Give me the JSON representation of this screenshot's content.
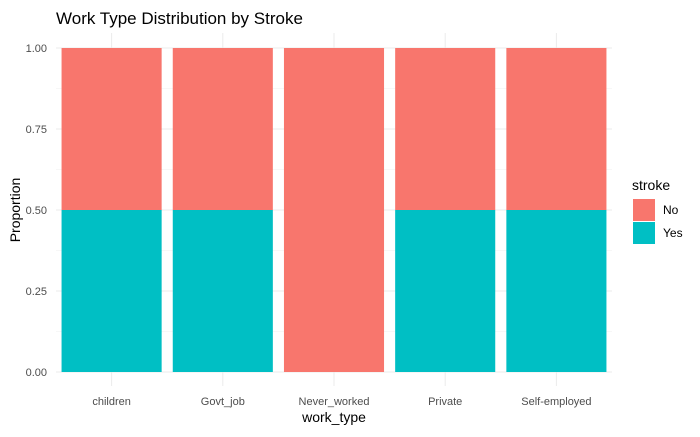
{
  "chart_data": {
    "type": "bar",
    "stacked": true,
    "title": "Work Type Distribution by Stroke",
    "xlabel": "work_type",
    "ylabel": "Proportion",
    "categories": [
      "children",
      "Govt_job",
      "Never_worked",
      "Private",
      "Self-employed"
    ],
    "series": [
      {
        "name": "No",
        "color": "#F8766D",
        "values": [
          0.5,
          0.5,
          1.0,
          0.5,
          0.5
        ]
      },
      {
        "name": "Yes",
        "color": "#00BFC4",
        "values": [
          0.5,
          0.5,
          0.0,
          0.5,
          0.5
        ]
      }
    ],
    "stack_order_bottom_to_top": [
      "Yes",
      "No"
    ],
    "ylim": [
      0,
      1
    ],
    "yticks": [
      "0.00",
      "0.25",
      "0.50",
      "0.75",
      "1.00"
    ],
    "grid": true,
    "legend": {
      "title": "stroke",
      "position": "right"
    }
  }
}
